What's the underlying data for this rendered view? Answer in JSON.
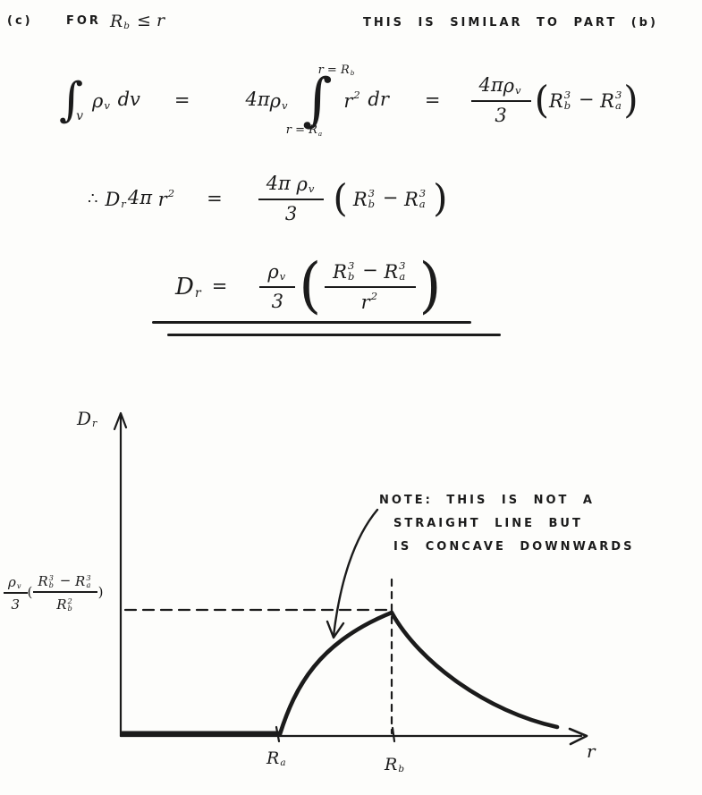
{
  "page": {
    "background": "#fdfdfb",
    "ink": "#1b1b1b"
  },
  "header": {
    "part_label": "(c)",
    "for_label": "FOR",
    "condition_tokens": [
      {
        "b": "R",
        "sub": "b"
      },
      "  ≤  r"
    ],
    "similar_note": "THIS IS SIMILAR TO PART (b)"
  },
  "symbols": {
    "integral": "∫",
    "equals": "=",
    "therefore": "∴",
    "lparen": "(",
    "rparen": ")"
  },
  "eq1": {
    "int_sub": "v",
    "integrand1_tokens": [
      {
        "b": "ρ",
        "sub": "v"
      },
      " dv"
    ],
    "coeff_tokens": [
      "4π",
      {
        "b": "ρ",
        "sub": "v"
      }
    ],
    "upper_limit_tokens": [
      "r = ",
      {
        "b": "R",
        "sub": "b"
      }
    ],
    "lower_limit_tokens": [
      "r = ",
      {
        "b": "R",
        "sub": "a"
      }
    ],
    "integrand2_tokens": [
      {
        "b": "r",
        "sup": "2"
      },
      " dr"
    ],
    "frac_num_tokens": [
      "4π",
      {
        "b": "ρ",
        "sub": "v"
      }
    ],
    "frac_den": "3",
    "paren_tokens": [
      {
        "b": "R",
        "sub": "b",
        "sup": "3"
      },
      " − ",
      {
        "b": "R",
        "sub": "a",
        "sup": "3"
      }
    ]
  },
  "eq2": {
    "lhs_tokens": [
      {
        "b": "D",
        "sub": "r"
      },
      "4π ",
      {
        "b": "r",
        "sup": "2"
      }
    ],
    "frac_num_tokens": [
      "4π ",
      {
        "b": "ρ",
        "sub": "v"
      }
    ],
    "frac_den": "3",
    "paren_tokens": [
      {
        "b": "R",
        "sub": "b",
        "sup": "3"
      },
      "  −  ",
      {
        "b": "R",
        "sub": "a",
        "sup": "3"
      }
    ]
  },
  "result": {
    "lhs_tokens": [
      {
        "b": "D",
        "sub": "r"
      }
    ],
    "outer_num_tokens": [
      {
        "b": "ρ",
        "sub": "v"
      }
    ],
    "outer_den": "3",
    "inner_num_tokens": [
      {
        "b": "R",
        "sub": "b",
        "sup": "3"
      },
      " − ",
      {
        "b": "R",
        "sub": "a",
        "sup": "3"
      }
    ],
    "inner_den_tokens": [
      {
        "b": "r",
        "sup": "2"
      }
    ]
  },
  "graph": {
    "y_axis_label_tokens": [
      {
        "b": "D",
        "sub": "r"
      }
    ],
    "x_axis_label": "r",
    "x_tick_a_tokens": [
      {
        "b": "R",
        "sub": "a"
      }
    ],
    "x_tick_b_tokens": [
      {
        "b": "R",
        "sub": "b"
      }
    ],
    "peak_outer_num_tokens": [
      {
        "b": "ρ",
        "sub": "v"
      }
    ],
    "peak_outer_den": "3",
    "peak_inner_num_tokens": [
      {
        "b": "R",
        "sub": "b",
        "sup": "3"
      },
      " − ",
      {
        "b": "R",
        "sub": "a",
        "sup": "3"
      }
    ],
    "peak_inner_den_tokens": [
      {
        "b": "R",
        "sub": "b",
        "sup": "2"
      }
    ],
    "note_lines": [
      "NOTE:  THIS  IS  NOT  A",
      "STRAIGHT  LINE  BUT",
      "IS  CONCAVE  DOWNWARDS"
    ]
  }
}
